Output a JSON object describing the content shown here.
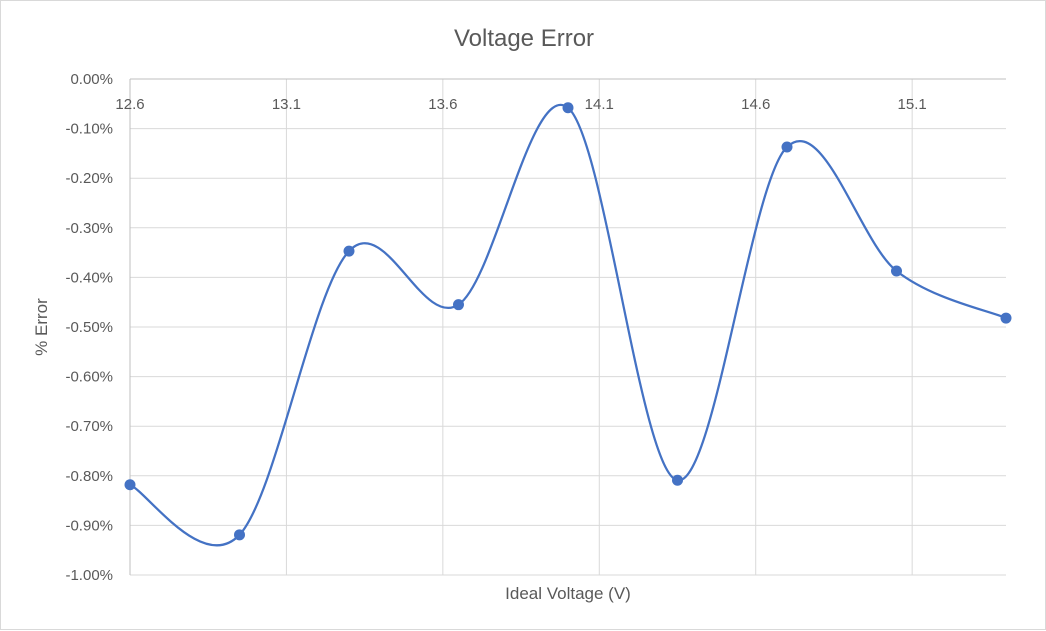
{
  "chart_data": {
    "type": "line",
    "title": "Voltage Error",
    "xlabel": "Ideal Voltage (V)",
    "ylabel": "% Error",
    "xlim": [
      12.6,
      15.4
    ],
    "ylim": [
      -1.0,
      0.0
    ],
    "x_ticks": [
      12.6,
      13.1,
      13.6,
      14.1,
      14.6,
      15.1
    ],
    "x_tick_labels": [
      "12.6",
      "13.1",
      "13.6",
      "14.1",
      "14.6",
      "15.1"
    ],
    "y_ticks": [
      0.0,
      -0.1,
      -0.2,
      -0.3,
      -0.4,
      -0.5,
      -0.6,
      -0.7,
      -0.8,
      -0.9,
      -1.0
    ],
    "y_tick_labels": [
      "0.00%",
      "-0.10%",
      "-0.20%",
      "-0.30%",
      "-0.40%",
      "-0.50%",
      "-0.60%",
      "-0.70%",
      "-0.80%",
      "-0.90%",
      "-1.00%"
    ],
    "grid": true,
    "smooth": true,
    "series": [
      {
        "color": "#4472c4",
        "x": [
          12.6,
          12.95,
          13.3,
          13.65,
          14.0,
          14.35,
          14.7,
          15.05,
          15.4
        ],
        "y": [
          -0.818,
          -0.919,
          -0.347,
          -0.455,
          -0.058,
          -0.809,
          -0.137,
          -0.387,
          -0.482
        ]
      }
    ]
  }
}
